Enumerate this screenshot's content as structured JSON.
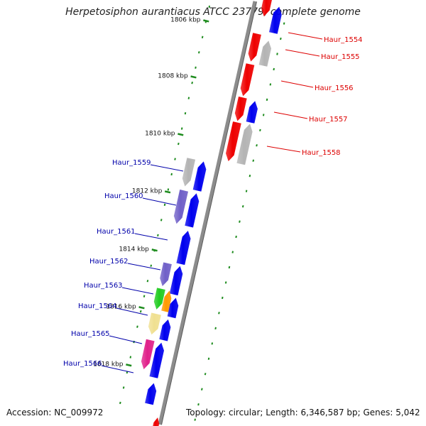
{
  "title": "Herpetosiphon aurantiacus ATCC 23779, complete genome",
  "accession": "Accession: NC_009972",
  "topology": "Topology: circular; Length: 6,346,587 bp; Genes: 5,042",
  "colors": {
    "background": "#ffffff",
    "backbone": "#8c8c8c",
    "tick": "#1e8c1e",
    "label_forward": "#0000aa",
    "label_reverse": "#dd0000",
    "gene_blue": "#0000ee",
    "gene_red": "#ee0000",
    "gene_gray": "#b4b4b4",
    "gene_purple": "#7060c8",
    "gene_green": "#22cc22",
    "gene_orange": "#ff9900",
    "gene_yellow": "#f0e090",
    "gene_magenta": "#e0208a"
  },
  "scale_labels": [
    {
      "text": "1806 kbp"
    },
    {
      "text": "1808 kbp"
    },
    {
      "text": "1810 kbp"
    },
    {
      "text": "1812 kbp"
    },
    {
      "text": "1814 kbp"
    },
    {
      "text": "1816 kbp"
    },
    {
      "text": "1818 kbp"
    }
  ],
  "gene_labels": [
    {
      "name": "Haur_1554",
      "strand": "reverse"
    },
    {
      "name": "Haur_1555",
      "strand": "reverse"
    },
    {
      "name": "Haur_1556",
      "strand": "reverse"
    },
    {
      "name": "Haur_1557",
      "strand": "reverse"
    },
    {
      "name": "Haur_1558",
      "strand": "reverse"
    },
    {
      "name": "Haur_1559",
      "strand": "forward"
    },
    {
      "name": "Haur_1560",
      "strand": "forward"
    },
    {
      "name": "Haur_1561",
      "strand": "forward"
    },
    {
      "name": "Haur_1562",
      "strand": "forward"
    },
    {
      "name": "Haur_1563",
      "strand": "forward"
    },
    {
      "name": "Haur_1564",
      "strand": "forward"
    },
    {
      "name": "Haur_1565",
      "strand": "forward"
    },
    {
      "name": "Haur_1566",
      "strand": "forward"
    }
  ]
}
